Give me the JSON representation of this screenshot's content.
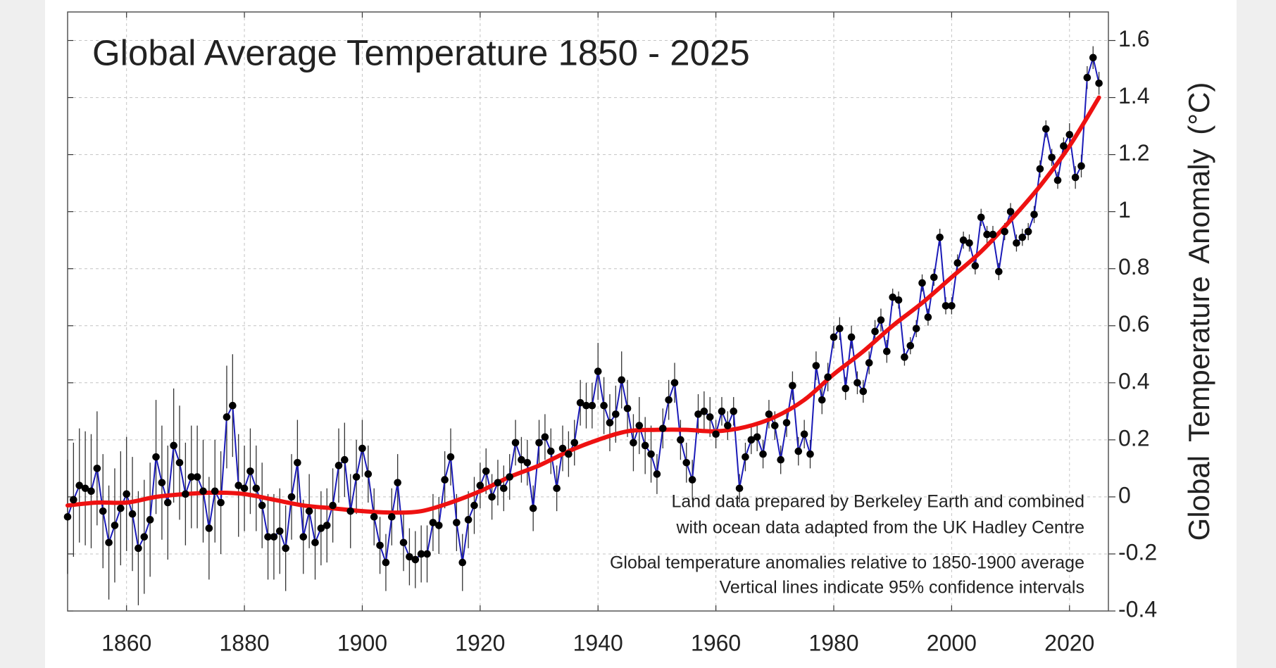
{
  "chart_data": {
    "type": "scatter",
    "title": "Global Average Temperature 1850 - 2025",
    "y_label": "Global Temperature Anomaly (°C)",
    "annotations": [
      "Land data prepared by Berkeley Earth and combined",
      "with ocean data adapted from the UK Hadley Centre",
      "Global temperature anomalies relative to 1850-1900 average",
      "Vertical lines indicate 95% confidence intervals"
    ],
    "xlim": [
      1850,
      2026.6
    ],
    "ylim": [
      -0.4,
      1.7
    ],
    "xticks": [
      1860,
      1880,
      1900,
      1920,
      1940,
      1960,
      1980,
      2000,
      2020
    ],
    "yticks": [
      -0.4,
      -0.2,
      0,
      0.2,
      0.4,
      0.6,
      0.8,
      1,
      1.2,
      1.4,
      1.6
    ],
    "grid": true,
    "x": [
      1850,
      1851,
      1852,
      1853,
      1854,
      1855,
      1856,
      1857,
      1858,
      1859,
      1860,
      1861,
      1862,
      1863,
      1864,
      1865,
      1866,
      1867,
      1868,
      1869,
      1870,
      1871,
      1872,
      1873,
      1874,
      1875,
      1876,
      1877,
      1878,
      1879,
      1880,
      1881,
      1882,
      1883,
      1884,
      1885,
      1886,
      1887,
      1888,
      1889,
      1890,
      1891,
      1892,
      1893,
      1894,
      1895,
      1896,
      1897,
      1898,
      1899,
      1900,
      1901,
      1902,
      1903,
      1904,
      1905,
      1906,
      1907,
      1908,
      1909,
      1910,
      1911,
      1912,
      1913,
      1914,
      1915,
      1916,
      1917,
      1918,
      1919,
      1920,
      1921,
      1922,
      1923,
      1924,
      1925,
      1926,
      1927,
      1928,
      1929,
      1930,
      1931,
      1932,
      1933,
      1934,
      1935,
      1936,
      1937,
      1938,
      1939,
      1940,
      1941,
      1942,
      1943,
      1944,
      1945,
      1946,
      1947,
      1948,
      1949,
      1950,
      1951,
      1952,
      1953,
      1954,
      1955,
      1956,
      1957,
      1958,
      1959,
      1960,
      1961,
      1962,
      1963,
      1964,
      1965,
      1966,
      1967,
      1968,
      1969,
      1970,
      1971,
      1972,
      1973,
      1974,
      1975,
      1976,
      1977,
      1978,
      1979,
      1980,
      1981,
      1982,
      1983,
      1984,
      1985,
      1986,
      1987,
      1988,
      1989,
      1990,
      1991,
      1992,
      1993,
      1994,
      1995,
      1996,
      1997,
      1998,
      1999,
      2000,
      2001,
      2002,
      2003,
      2004,
      2005,
      2006,
      2007,
      2008,
      2009,
      2010,
      2011,
      2012,
      2013,
      2014,
      2015,
      2016,
      2017,
      2018,
      2019,
      2020,
      2021,
      2022,
      2023,
      2024,
      2025
    ],
    "series": [
      {
        "color": "#000000",
        "line_color": "#1a1ab8",
        "error_color": "#333333",
        "values": [
          -0.07,
          -0.01,
          0.04,
          0.03,
          0.02,
          0.1,
          -0.05,
          -0.16,
          -0.1,
          -0.04,
          0.01,
          -0.06,
          -0.18,
          -0.14,
          -0.08,
          0.14,
          0.05,
          -0.02,
          0.18,
          0.12,
          0.01,
          0.07,
          0.07,
          0.02,
          -0.11,
          0.02,
          -0.02,
          0.28,
          0.32,
          0.04,
          0.03,
          0.09,
          0.03,
          -0.03,
          -0.14,
          -0.14,
          -0.12,
          -0.18,
          0.0,
          0.12,
          -0.14,
          -0.05,
          -0.16,
          -0.11,
          -0.1,
          -0.03,
          0.11,
          0.13,
          -0.05,
          0.07,
          0.17,
          0.08,
          -0.07,
          -0.17,
          -0.23,
          -0.07,
          0.05,
          -0.16,
          -0.21,
          -0.22,
          -0.2,
          -0.2,
          -0.09,
          -0.1,
          0.06,
          0.14,
          -0.09,
          -0.23,
          -0.08,
          -0.03,
          0.04,
          0.09,
          0.0,
          0.05,
          0.03,
          0.07,
          0.19,
          0.13,
          0.12,
          -0.04,
          0.19,
          0.21,
          0.16,
          0.03,
          0.17,
          0.15,
          0.19,
          0.33,
          0.32,
          0.32,
          0.44,
          0.32,
          0.26,
          0.29,
          0.41,
          0.31,
          0.19,
          0.25,
          0.18,
          0.15,
          0.08,
          0.24,
          0.34,
          0.4,
          0.2,
          0.12,
          0.06,
          0.29,
          0.3,
          0.28,
          0.22,
          0.3,
          0.25,
          0.3,
          0.03,
          0.14,
          0.2,
          0.21,
          0.15,
          0.29,
          0.25,
          0.13,
          0.26,
          0.39,
          0.16,
          0.22,
          0.15,
          0.46,
          0.34,
          0.42,
          0.56,
          0.59,
          0.38,
          0.56,
          0.4,
          0.37,
          0.47,
          0.58,
          0.62,
          0.51,
          0.7,
          0.69,
          0.49,
          0.53,
          0.59,
          0.75,
          0.63,
          0.77,
          0.91,
          0.67,
          0.67,
          0.82,
          0.9,
          0.89,
          0.81,
          0.98,
          0.92,
          0.92,
          0.79,
          0.93,
          1.0,
          0.89,
          0.91,
          0.93,
          0.99,
          1.15,
          1.29,
          1.19,
          1.11,
          1.23,
          1.27,
          1.12,
          1.16,
          1.47,
          1.54,
          1.45
        ],
        "errors": [
          0.2,
          0.2,
          0.2,
          0.2,
          0.2,
          0.2,
          0.2,
          0.2,
          0.2,
          0.2,
          0.2,
          0.2,
          0.2,
          0.2,
          0.2,
          0.2,
          0.2,
          0.2,
          0.2,
          0.2,
          0.18,
          0.18,
          0.18,
          0.18,
          0.18,
          0.18,
          0.18,
          0.18,
          0.18,
          0.18,
          0.15,
          0.15,
          0.15,
          0.15,
          0.15,
          0.15,
          0.15,
          0.15,
          0.15,
          0.15,
          0.13,
          0.13,
          0.13,
          0.13,
          0.13,
          0.13,
          0.13,
          0.13,
          0.13,
          0.13,
          0.1,
          0.1,
          0.1,
          0.1,
          0.1,
          0.1,
          0.1,
          0.1,
          0.1,
          0.1,
          0.1,
          0.1,
          0.1,
          0.1,
          0.1,
          0.1,
          0.1,
          0.1,
          0.1,
          0.1,
          0.08,
          0.08,
          0.08,
          0.08,
          0.08,
          0.08,
          0.08,
          0.08,
          0.08,
          0.08,
          0.08,
          0.08,
          0.08,
          0.08,
          0.08,
          0.08,
          0.08,
          0.08,
          0.08,
          0.08,
          0.1,
          0.1,
          0.1,
          0.1,
          0.1,
          0.1,
          0.1,
          0.1,
          0.1,
          0.1,
          0.07,
          0.07,
          0.07,
          0.07,
          0.07,
          0.07,
          0.07,
          0.07,
          0.07,
          0.07,
          0.05,
          0.05,
          0.05,
          0.05,
          0.05,
          0.05,
          0.05,
          0.05,
          0.05,
          0.05,
          0.05,
          0.05,
          0.05,
          0.05,
          0.05,
          0.05,
          0.05,
          0.05,
          0.05,
          0.05,
          0.04,
          0.04,
          0.04,
          0.04,
          0.04,
          0.04,
          0.04,
          0.04,
          0.04,
          0.04,
          0.03,
          0.03,
          0.03,
          0.03,
          0.03,
          0.03,
          0.03,
          0.03,
          0.03,
          0.03,
          0.03,
          0.03,
          0.03,
          0.03,
          0.03,
          0.03,
          0.03,
          0.03,
          0.03,
          0.03,
          0.03,
          0.03,
          0.03,
          0.03,
          0.03,
          0.03,
          0.03,
          0.03,
          0.03,
          0.03,
          0.04,
          0.04,
          0.04,
          0.04,
          0.04,
          0.04
        ]
      },
      {
        "color": "#ee1111",
        "x": [
          1850,
          1855,
          1860,
          1865,
          1870,
          1875,
          1880,
          1885,
          1890,
          1895,
          1900,
          1905,
          1910,
          1915,
          1920,
          1925,
          1930,
          1935,
          1940,
          1945,
          1950,
          1955,
          1960,
          1965,
          1970,
          1975,
          1980,
          1985,
          1990,
          1995,
          2000,
          2005,
          2010,
          2015,
          2020,
          2025
        ],
        "values": [
          -0.03,
          -0.02,
          -0.02,
          0.0,
          0.01,
          0.015,
          0.01,
          -0.01,
          -0.03,
          -0.04,
          -0.05,
          -0.055,
          -0.05,
          -0.02,
          0.02,
          0.07,
          0.11,
          0.16,
          0.2,
          0.23,
          0.235,
          0.235,
          0.23,
          0.245,
          0.28,
          0.34,
          0.43,
          0.51,
          0.6,
          0.68,
          0.77,
          0.86,
          0.97,
          1.09,
          1.23,
          1.4
        ]
      }
    ]
  }
}
